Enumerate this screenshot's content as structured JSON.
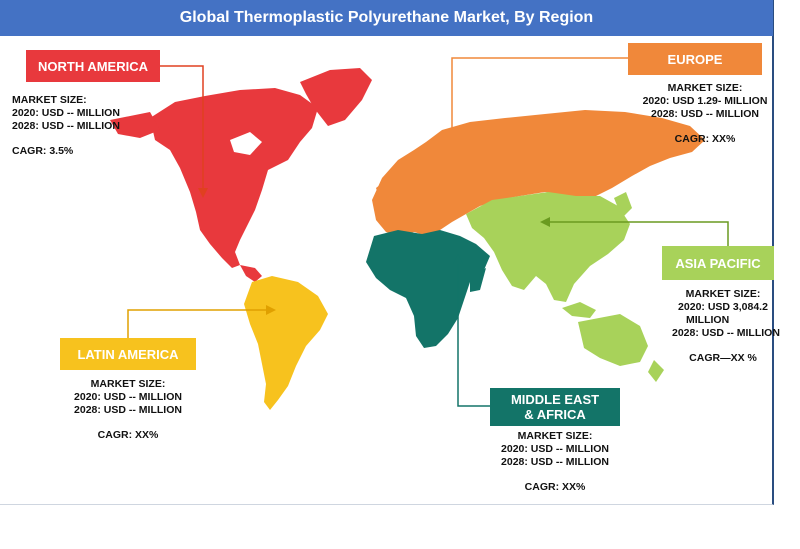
{
  "title": "Global Thermoplastic Polyurethane Market, By Region",
  "colors": {
    "header": "#4472c4",
    "north_america": "#e8393d",
    "europe": "#f0883a",
    "asia_pacific": "#a8d25a",
    "latin_america": "#f7c21e",
    "mea": "#137468"
  },
  "regions": {
    "north_america": {
      "name": "NORTH AMERICA",
      "market_size_label": "MARKET SIZE:",
      "value_2020": "2020: USD -- MILLION",
      "value_2028": "2028: USD -- MILLION",
      "cagr": "CAGR: 3.5%"
    },
    "europe": {
      "name": "EUROPE",
      "market_size_label": "MARKET SIZE:",
      "value_2020": "2020: USD 1.29- MILLION",
      "value_2028": "2028: USD -- MILLION",
      "cagr": "CAGR:  XX%"
    },
    "asia_pacific": {
      "name": "ASIA PACIFIC",
      "market_size_label": "MARKET SIZE:",
      "value_2020": "2020: USD  3,084.2",
      "value_2020_unit": "MILLION",
      "value_2028": "2028: USD -- MILLION",
      "cagr": "CAGR—XX    %"
    },
    "latin_america": {
      "name": "LATIN AMERICA",
      "market_size_label": "MARKET SIZE:",
      "value_2020": "2020: USD -- MILLION",
      "value_2028": "2028: USD -- MILLION",
      "cagr": "CAGR: XX%"
    },
    "mea": {
      "name_line1": "MIDDLE EAST",
      "name_line2": "& AFRICA",
      "market_size_label": "MARKET SIZE:",
      "value_2020": "2020: USD -- MILLION",
      "value_2028": "2028: USD -- MILLION",
      "cagr": "CAGR: XX%"
    }
  }
}
